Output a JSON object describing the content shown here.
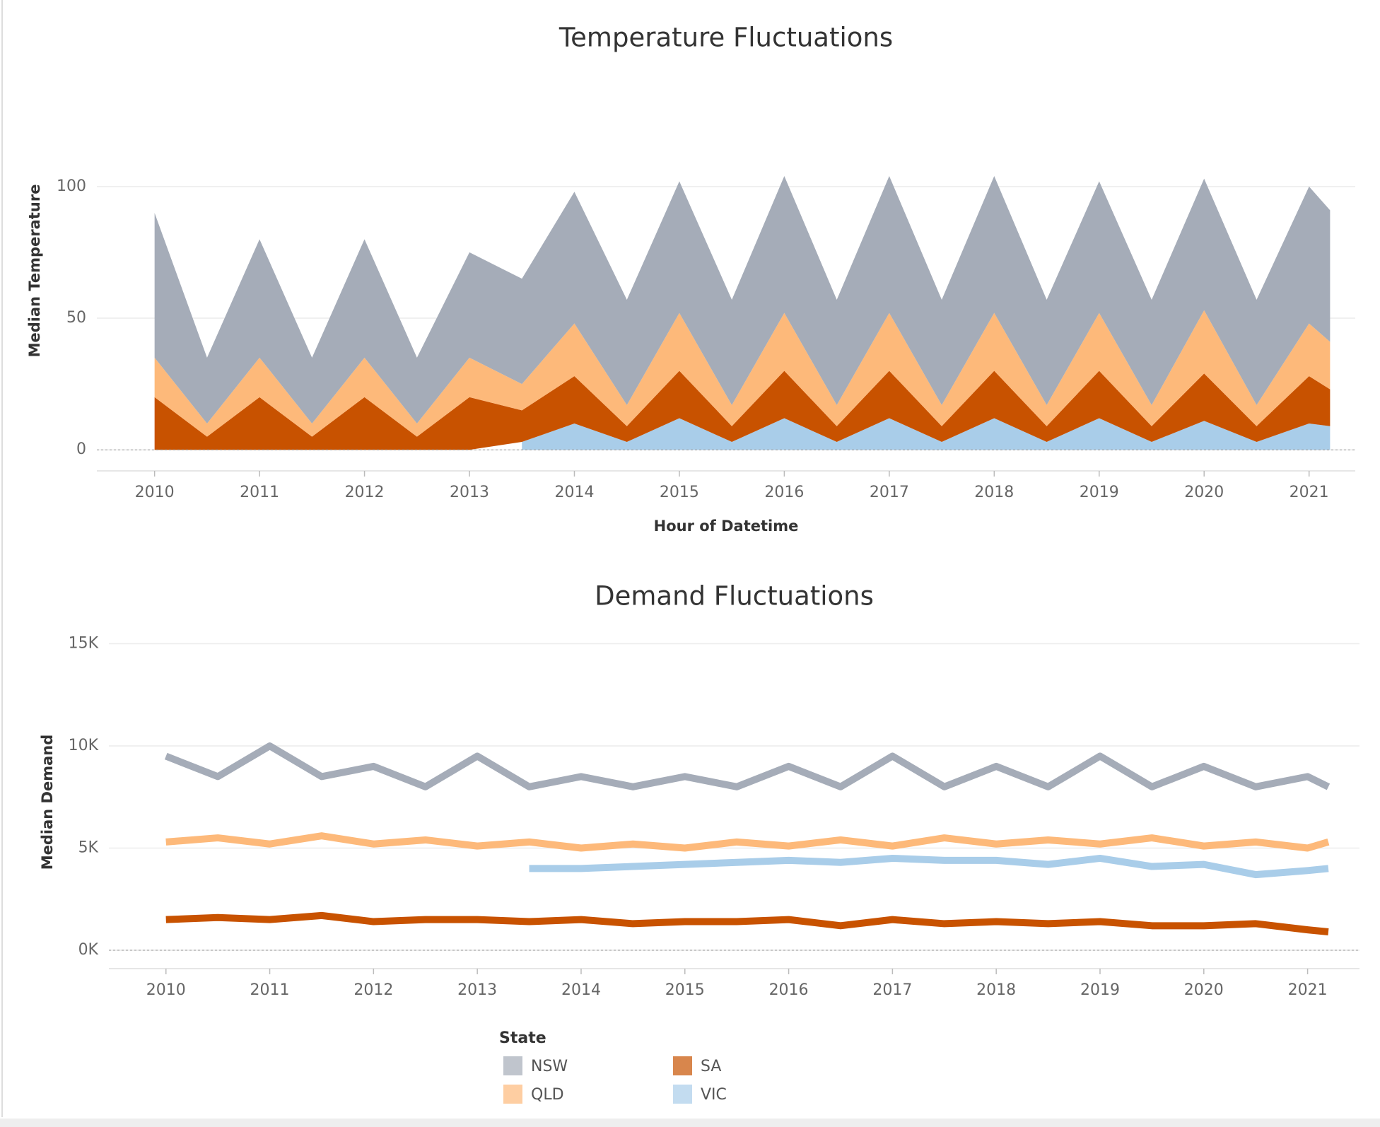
{
  "chart_data": [
    {
      "type": "area",
      "stacked": true,
      "title": "Temperature Fluctuations",
      "x_label": "Hour of Datetime",
      "y_label": "Median Temperature",
      "x": [
        2010,
        2010.5,
        2011,
        2011.5,
        2012,
        2012.5,
        2013,
        2013.5,
        2014,
        2014.5,
        2015,
        2015.5,
        2016,
        2016.5,
        2017,
        2017.5,
        2018,
        2018.5,
        2019,
        2019.5,
        2020,
        2020.5,
        2021,
        2021.2
      ],
      "xlim": [
        2009.45,
        2021.44
      ],
      "xticks": [
        2010,
        2011,
        2012,
        2013,
        2014,
        2015,
        2016,
        2017,
        2018,
        2019,
        2020,
        2021
      ],
      "ylim": [
        -8,
        144
      ],
      "yticks": [
        0,
        50,
        100
      ],
      "grid": true,
      "series": [
        {
          "name": "NSW",
          "color": "#a5acb8",
          "values": [
            55,
            25,
            45,
            25,
            45,
            25,
            40,
            40,
            50,
            40,
            50,
            40,
            52,
            40,
            52,
            40,
            52,
            40,
            50,
            40,
            50,
            40,
            52,
            50
          ]
        },
        {
          "name": "QLD",
          "color": "#fdb97a",
          "values": [
            15,
            5,
            15,
            5,
            15,
            5,
            15,
            10,
            20,
            8,
            22,
            8,
            22,
            8,
            22,
            8,
            22,
            8,
            22,
            8,
            24,
            8,
            20,
            18
          ]
        },
        {
          "name": "SA",
          "color": "#c85200",
          "values": [
            20,
            5,
            20,
            5,
            20,
            5,
            20,
            12,
            18,
            6,
            18,
            6,
            18,
            6,
            18,
            6,
            18,
            6,
            18,
            6,
            18,
            6,
            18,
            14
          ]
        },
        {
          "name": "VIC",
          "color": "#a9cde9",
          "values": [
            null,
            null,
            null,
            null,
            null,
            null,
            null,
            3,
            10,
            3,
            12,
            3,
            12,
            3,
            12,
            3,
            12,
            3,
            12,
            3,
            11,
            3,
            10,
            9
          ]
        }
      ]
    },
    {
      "type": "line",
      "title": "Demand Fluctuations",
      "y_label": "Median Demand",
      "x": [
        2010,
        2010.5,
        2011,
        2011.5,
        2012,
        2012.5,
        2013,
        2013.5,
        2014,
        2014.5,
        2015,
        2015.5,
        2016,
        2016.5,
        2017,
        2017.5,
        2018,
        2018.5,
        2019,
        2019.5,
        2020,
        2020.5,
        2021,
        2021.2
      ],
      "xlim": [
        2009.45,
        2021.5
      ],
      "xticks": [
        2010,
        2011,
        2012,
        2013,
        2014,
        2015,
        2016,
        2017,
        2018,
        2019,
        2020,
        2021
      ],
      "ylim": [
        -900,
        15400
      ],
      "yticks": [
        {
          "value": 0,
          "label": "0K"
        },
        {
          "value": 5000,
          "label": "5K"
        },
        {
          "value": 10000,
          "label": "10K"
        },
        {
          "value": 15000,
          "label": "15K"
        }
      ],
      "grid": true,
      "legend_title": "State",
      "series": [
        {
          "name": "NSW",
          "color": "#a5acb8",
          "values": [
            9500,
            8500,
            10000,
            8500,
            9000,
            8000,
            9500,
            8000,
            8500,
            8000,
            8500,
            8000,
            9000,
            8000,
            9500,
            8000,
            9000,
            8000,
            9500,
            8000,
            9000,
            8000,
            8500,
            8000
          ]
        },
        {
          "name": "QLD",
          "color": "#fdb97a",
          "values": [
            5300,
            5500,
            5200,
            5600,
            5200,
            5400,
            5100,
            5300,
            5000,
            5200,
            5000,
            5300,
            5100,
            5400,
            5100,
            5500,
            5200,
            5400,
            5200,
            5500,
            5100,
            5300,
            5000,
            5300
          ]
        },
        {
          "name": "SA",
          "color": "#c85200",
          "values": [
            1500,
            1600,
            1500,
            1700,
            1400,
            1500,
            1500,
            1400,
            1500,
            1300,
            1400,
            1400,
            1500,
            1200,
            1500,
            1300,
            1400,
            1300,
            1400,
            1200,
            1200,
            1300,
            1000,
            900
          ]
        },
        {
          "name": "VIC",
          "color": "#a9cde9",
          "values": [
            null,
            null,
            null,
            null,
            null,
            null,
            null,
            4000,
            4000,
            4100,
            4200,
            4300,
            4400,
            4300,
            4500,
            4400,
            4400,
            4200,
            4500,
            4100,
            4200,
            3700,
            3900,
            4000
          ]
        }
      ]
    }
  ]
}
